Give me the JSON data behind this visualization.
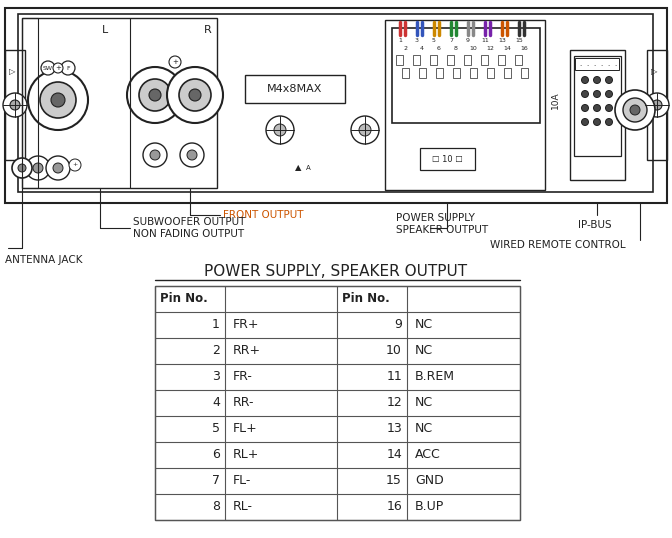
{
  "bg_color": "#ffffff",
  "title": "POWER SUPPLY, SPEAKER OUTPUT",
  "table_header": [
    "Pin No.",
    "",
    "Pin No.",
    ""
  ],
  "table_rows": [
    [
      "1",
      "FR+",
      "9",
      "NC"
    ],
    [
      "2",
      "RR+",
      "10",
      "NC"
    ],
    [
      "3",
      "FR-",
      "11",
      "B.REM"
    ],
    [
      "4",
      "RR-",
      "12",
      "NC"
    ],
    [
      "5",
      "FL+",
      "13",
      "NC"
    ],
    [
      "6",
      "RL+",
      "14",
      "ACC"
    ],
    [
      "7",
      "FL-",
      "15",
      "GND"
    ],
    [
      "8",
      "RL-",
      "16",
      "B.UP"
    ]
  ],
  "line_color": "#222222",
  "orange_color": "#cc5500",
  "gray_rca": "#999999",
  "dark_gray": "#555555"
}
